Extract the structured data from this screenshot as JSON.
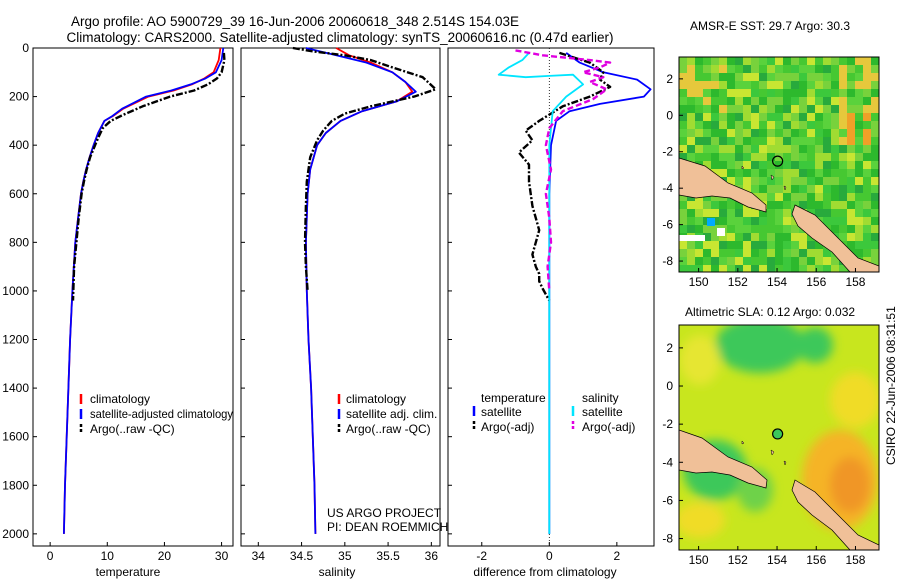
{
  "header": {
    "line1": "Argo profile: AO 5900729_39 16-Jun-2006 20060618_348 2.514S 154.03E",
    "line2": "Climatology: CARS2000. Satellite-adjusted climatology: synTS_20060616.nc (0.47d earlier)"
  },
  "colors": {
    "climatology": "#ff0000",
    "satellite": "#0000ff",
    "argo": "#000000",
    "sat_diff_salinity": "#00e5ff",
    "argo_diff_salinity": "#e000e0",
    "land": "#f0c098"
  },
  "chart_data": [
    {
      "id": "temperature",
      "type": "line",
      "xlabel": "temperature",
      "ylabel": "",
      "xlim": [
        -3,
        32
      ],
      "ylim": [
        2050,
        0
      ],
      "xticks": [
        0,
        10,
        20,
        30
      ],
      "yticks": [
        0,
        200,
        400,
        600,
        800,
        1000,
        1200,
        1400,
        1600,
        1800,
        2000
      ],
      "legend": [
        "climatology",
        "satellite-adjusted climatology",
        "Argo(..raw -QC)"
      ],
      "series": [
        {
          "name": "climatology",
          "style": "solid",
          "x": [
            29.8,
            29.5,
            28.6,
            27.0,
            24.8,
            21.6,
            17.2,
            12.8,
            11.0,
            9.5,
            8.4,
            7.6,
            6.9,
            6.3,
            5.8,
            5.4,
            4.9,
            4.4,
            3.9,
            3.5,
            3.2,
            2.9,
            2.6,
            2.4
          ],
          "y": [
            0,
            50,
            100,
            125,
            150,
            175,
            200,
            250,
            280,
            300,
            350,
            400,
            450,
            500,
            550,
            600,
            700,
            800,
            1000,
            1200,
            1400,
            1600,
            1800,
            2000
          ]
        },
        {
          "name": "satellite-adjusted climatology",
          "style": "solid",
          "x": [
            30.3,
            30.0,
            29.0,
            27.2,
            24.6,
            21.2,
            16.8,
            12.6,
            10.9,
            9.5,
            8.4,
            7.6,
            6.9,
            6.3,
            5.8,
            5.4,
            4.9,
            4.4,
            3.9,
            3.5,
            3.2,
            2.9,
            2.6,
            2.4
          ],
          "y": [
            0,
            50,
            100,
            125,
            150,
            175,
            200,
            250,
            280,
            300,
            350,
            400,
            450,
            500,
            550,
            600,
            700,
            800,
            1000,
            1200,
            1400,
            1600,
            1800,
            2000
          ]
        },
        {
          "name": "Argo(..raw -QC)",
          "style": "dashdot",
          "x": [
            30.4,
            30.5,
            30.0,
            29.2,
            27.6,
            25.2,
            21.0,
            16.2,
            12.8,
            10.6,
            9.2,
            8.4,
            7.7,
            7.0,
            6.4,
            5.9,
            5.5,
            5.0,
            4.6,
            4.2,
            4.0
          ],
          "y": [
            20,
            50,
            100,
            125,
            150,
            175,
            200,
            240,
            275,
            300,
            330,
            370,
            410,
            450,
            500,
            550,
            600,
            700,
            800,
            900,
            1040
          ]
        }
      ]
    },
    {
      "id": "salinity",
      "type": "line",
      "xlabel": "salinity",
      "ylabel": "",
      "xlim": [
        33.8,
        36.1
      ],
      "ylim": [
        2050,
        0
      ],
      "xticks": [
        34,
        34.5,
        35,
        35.5,
        36
      ],
      "yticks": [
        0,
        200,
        400,
        600,
        800,
        1000,
        1200,
        1400,
        1600,
        1800,
        2000
      ],
      "legend": [
        "climatology",
        "satellite adj. clim.",
        "Argo(..raw -QC)"
      ],
      "annotation_line1": "US ARGO PROJECT",
      "annotation_line2": "PI: DEAN ROEMMICH",
      "series": [
        {
          "name": "climatology",
          "style": "solid",
          "x": [
            34.9,
            35.05,
            35.3,
            35.55,
            35.7,
            35.78,
            35.6,
            35.2,
            34.95,
            34.78,
            34.68,
            34.6,
            34.57,
            34.55,
            34.56,
            34.58,
            34.61,
            34.63,
            34.65,
            34.66
          ],
          "y": [
            0,
            30,
            60,
            100,
            140,
            180,
            220,
            260,
            300,
            350,
            400,
            500,
            600,
            800,
            1000,
            1200,
            1400,
            1600,
            1800,
            2000
          ]
        },
        {
          "name": "satellite adj. clim.",
          "style": "solid",
          "x": [
            34.55,
            34.9,
            35.25,
            35.55,
            35.7,
            35.82,
            35.6,
            35.2,
            34.95,
            34.78,
            34.68,
            34.6,
            34.57,
            34.55,
            34.56,
            34.58,
            34.61,
            34.63,
            34.65,
            34.66
          ],
          "y": [
            0,
            30,
            60,
            100,
            140,
            180,
            220,
            260,
            300,
            350,
            400,
            500,
            600,
            800,
            1000,
            1200,
            1400,
            1600,
            1800,
            2000
          ]
        },
        {
          "name": "Argo(..raw -QC)",
          "style": "dashdot",
          "x": [
            34.4,
            34.65,
            35.0,
            35.3,
            35.55,
            35.9,
            36.05,
            35.8,
            35.3,
            35.0,
            34.85,
            34.75,
            34.68,
            34.6,
            34.56,
            34.55,
            34.54,
            34.55,
            34.57
          ],
          "y": [
            0,
            15,
            30,
            50,
            80,
            120,
            170,
            200,
            240,
            270,
            300,
            340,
            380,
            450,
            550,
            650,
            800,
            900,
            1000
          ]
        }
      ]
    },
    {
      "id": "difference",
      "type": "line",
      "xlabel": "difference from climatology",
      "ylabel": "",
      "xlim": [
        -3,
        3.1
      ],
      "ylim": [
        2050,
        0
      ],
      "xticks": [
        -2,
        0,
        2
      ],
      "yticks": [
        0,
        200,
        400,
        600,
        800,
        1000,
        1200,
        1400,
        1600,
        1800,
        2000
      ],
      "legend_title_temperature": "temperature",
      "legend_title_salinity": "salinity",
      "legend": [
        "satellite",
        "Argo(-adj)",
        "satellite",
        "Argo(-adj)"
      ],
      "series": [
        {
          "name": "temperature satellite",
          "style": "solid",
          "x": [
            0.5,
            0.9,
            1.6,
            2.6,
            3.0,
            2.8,
            1.5,
            0.6,
            0.2,
            0.05,
            0.0,
            0.0,
            0.0,
            0.0
          ],
          "y": [
            20,
            60,
            100,
            130,
            170,
            200,
            230,
            260,
            300,
            400,
            600,
            1000,
            1500,
            2000
          ]
        },
        {
          "name": "temperature Argo(-adj)",
          "style": "dashdot",
          "x": [
            0.3,
            1.2,
            1.6,
            1.5,
            1.8,
            1.2,
            0.4,
            -0.3,
            -0.7,
            -0.5,
            -0.9,
            -0.6,
            -0.6,
            -0.5,
            -0.3,
            -0.5,
            -0.4,
            -0.3,
            -0.3,
            -0.2,
            0.0
          ],
          "y": [
            20,
            60,
            100,
            130,
            160,
            200,
            240,
            300,
            340,
            380,
            430,
            480,
            550,
            650,
            750,
            850,
            900,
            930,
            960,
            990,
            1040
          ]
        },
        {
          "name": "salinity satellite",
          "style": "solid",
          "x": [
            -0.6,
            -0.8,
            -1.2,
            -1.5,
            -0.7,
            0.0,
            0.7,
            1.0,
            0.5,
            0.1,
            0.0,
            0.0,
            0.0
          ],
          "y": [
            20,
            50,
            80,
            110,
            120,
            115,
            110,
            150,
            200,
            260,
            400,
            1000,
            2000
          ]
        },
        {
          "name": "salinity Argo(-adj)",
          "style": "dashed",
          "x": [
            -1.0,
            -0.2,
            1.2,
            1.8,
            1.5,
            1.0,
            1.6,
            1.2,
            1.7,
            1.3,
            0.4,
            0.0,
            -0.1,
            0.05,
            -0.1,
            0.0,
            0.05,
            -0.05,
            0.0
          ],
          "y": [
            10,
            30,
            50,
            60,
            80,
            100,
            120,
            140,
            170,
            210,
            260,
            330,
            400,
            500,
            600,
            700,
            800,
            900,
            1000
          ]
        }
      ]
    },
    {
      "id": "amsr_map",
      "type": "heatmap",
      "title": "AMSR-E SST: 29.7 Argo: 30.3",
      "xlim": [
        149,
        159.2
      ],
      "ylim": [
        -8.6,
        3.2
      ],
      "xticks": [
        150,
        152,
        154,
        156,
        158
      ],
      "yticks": [
        2,
        0,
        -2,
        -4,
        -6,
        -8
      ],
      "marker_lon": 154.03,
      "marker_lat": -2.514
    },
    {
      "id": "sla_map",
      "type": "heatmap",
      "title": "Altimetric SLA: 0.12 Argo: 0.032",
      "xlim": [
        149,
        159.2
      ],
      "ylim": [
        -8.6,
        3.2
      ],
      "xticks": [
        150,
        152,
        154,
        156,
        158
      ],
      "yticks": [
        2,
        0,
        -2,
        -4,
        -6,
        -8
      ],
      "marker_lon": 154.03,
      "marker_lat": -2.514
    }
  ],
  "footer": {
    "credit": "CSIRO 22-Jun-2006 08:31:51"
  }
}
